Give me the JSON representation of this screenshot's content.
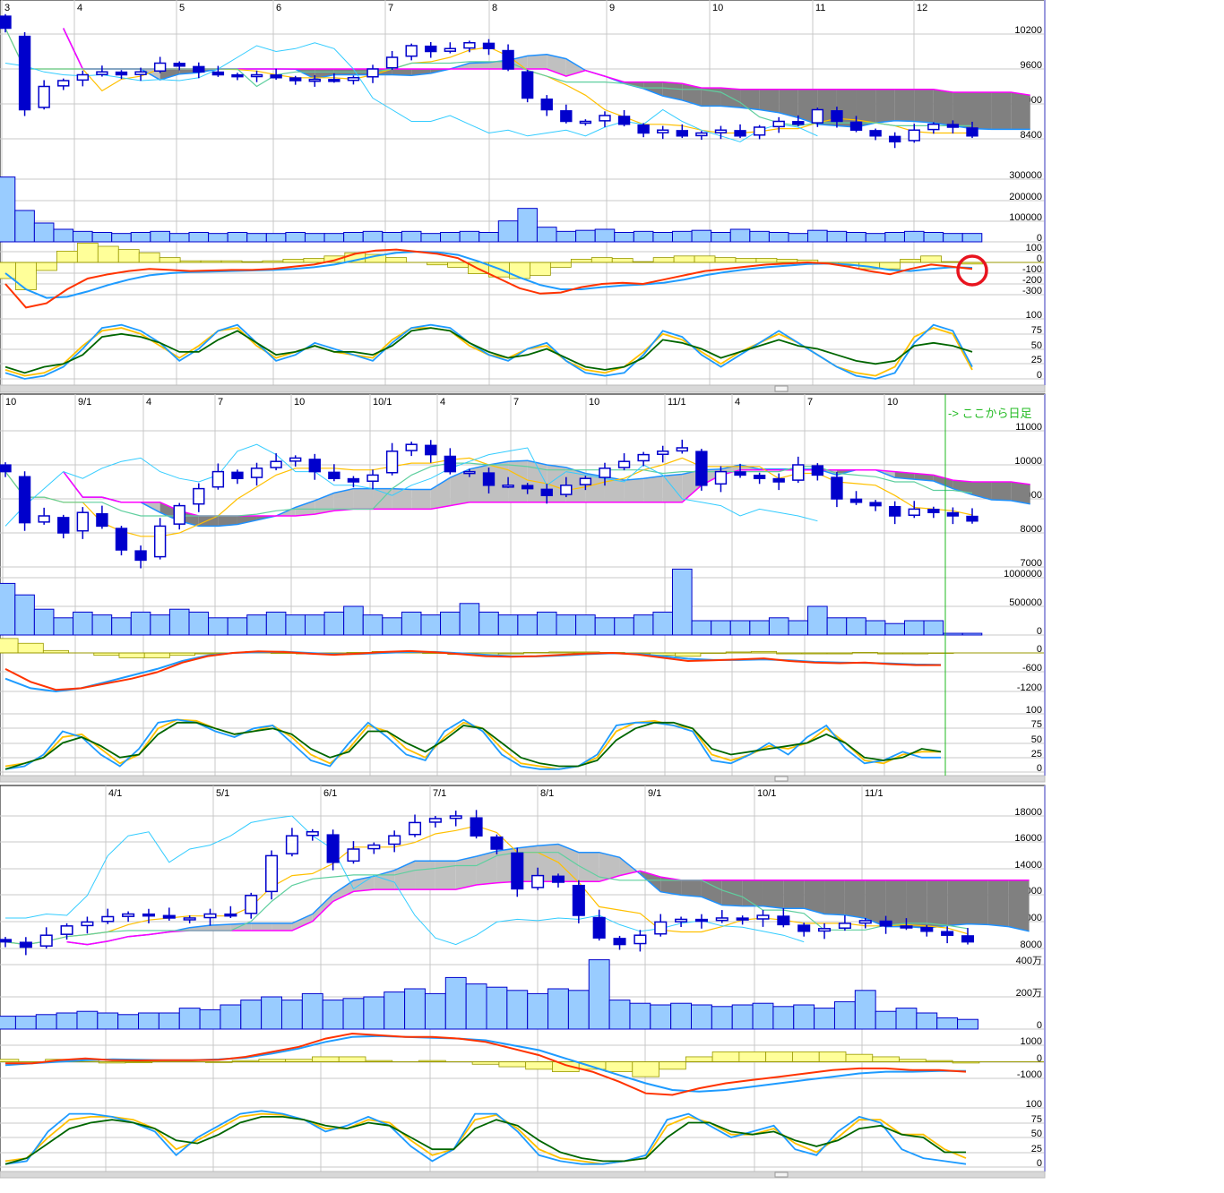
{
  "colors": {
    "up_candle": "#ffffff",
    "down_candle": "#0000cc",
    "volume": "#99ccff",
    "tenkan": "#ffc000",
    "kijun": "#5fcf9f",
    "chikou": "#33ccff",
    "span_a": "#1e90ff",
    "span_b": "#ff00ff",
    "macd": "#ff3300",
    "signal": "#1e9bff",
    "histogram": "#ffff99",
    "stoch_k": "#1e9bff",
    "stoch_d": "#ffc000",
    "slow_d": "#006600",
    "highlight_circle": "#e8141e",
    "daily_marker": "#22bb22"
  },
  "chart_data": [
    {
      "type": "candlestick",
      "panel": "top",
      "date_labels": [
        "3",
        "4",
        "5",
        "6",
        "7",
        "8",
        "9",
        "10",
        "11",
        "12"
      ],
      "price_ticks": [
        "10200",
        "9600",
        "9000",
        "8400"
      ],
      "volume_ticks": [
        "300000",
        "200000",
        "100000",
        "0"
      ],
      "macd_ticks": [
        "100",
        "0",
        "-100",
        "-200",
        "-300"
      ],
      "stoch_ticks": [
        "100",
        "75",
        "50",
        "25",
        "0"
      ],
      "annotation": "red-circle-around-macd-crossover",
      "close": [
        10300,
        8900,
        9300,
        9400,
        9500,
        9550,
        9500,
        9550,
        9700,
        9650,
        9550,
        9500,
        9480,
        9500,
        9450,
        9400,
        9420,
        9400,
        9450,
        9600,
        9800,
        10000,
        9900,
        9950,
        10050,
        9950,
        9600,
        9100,
        8900,
        8700,
        8700,
        8800,
        8650,
        8500,
        8550,
        8450,
        8500,
        8550,
        8450,
        8600,
        8700,
        8650,
        8900,
        8700,
        8550,
        8450,
        8350,
        8550,
        8650,
        8600,
        8450
      ],
      "volume": [
        310000,
        150000,
        90000,
        60000,
        50000,
        45000,
        40000,
        45000,
        50000,
        40000,
        45000,
        40000,
        45000,
        40000,
        40000,
        45000,
        40000,
        40000,
        45000,
        50000,
        45000,
        50000,
        40000,
        45000,
        50000,
        45000,
        100000,
        160000,
        70000,
        50000,
        55000,
        60000,
        45000,
        50000,
        45000,
        50000,
        55000,
        45000,
        60000,
        50000,
        45000,
        40000,
        55000,
        50000,
        45000,
        40000,
        45000,
        50000,
        45000,
        40000,
        40000
      ],
      "macd": [
        -200,
        -420,
        -380,
        -250,
        -150,
        -110,
        -80,
        -60,
        -70,
        -80,
        -75,
        -70,
        -70,
        -60,
        -40,
        -20,
        20,
        80,
        110,
        120,
        100,
        80,
        40,
        -60,
        -150,
        -240,
        -290,
        -280,
        -230,
        -200,
        -190,
        -200,
        -160,
        -120,
        -80,
        -60,
        -40,
        -20,
        -10,
        0,
        -10,
        -40,
        -80,
        -110,
        -60,
        -20,
        -40,
        -60
      ],
      "signal": [
        -100,
        -250,
        -330,
        -320,
        -270,
        -210,
        -160,
        -120,
        -100,
        -90,
        -85,
        -80,
        -75,
        -70,
        -60,
        -45,
        -20,
        20,
        60,
        90,
        100,
        95,
        70,
        10,
        -60,
        -140,
        -210,
        -250,
        -250,
        -230,
        -215,
        -205,
        -190,
        -160,
        -120,
        -90,
        -65,
        -45,
        -30,
        -15,
        -10,
        -20,
        -40,
        -70,
        -80,
        -60,
        -45,
        -50
      ],
      "stoch_k": [
        10,
        0,
        5,
        20,
        50,
        85,
        90,
        80,
        60,
        30,
        50,
        80,
        90,
        60,
        30,
        40,
        60,
        50,
        40,
        30,
        60,
        85,
        90,
        85,
        60,
        40,
        30,
        50,
        60,
        30,
        10,
        5,
        10,
        40,
        80,
        70,
        40,
        20,
        40,
        60,
        80,
        60,
        40,
        20,
        5,
        0,
        10,
        60,
        90,
        80,
        20
      ],
      "stoch_d": [
        15,
        5,
        10,
        25,
        55,
        80,
        85,
        75,
        55,
        35,
        55,
        80,
        85,
        55,
        35,
        45,
        55,
        45,
        40,
        35,
        65,
        85,
        85,
        80,
        55,
        40,
        35,
        50,
        55,
        30,
        15,
        10,
        20,
        45,
        75,
        65,
        45,
        25,
        45,
        60,
        75,
        60,
        40,
        20,
        10,
        5,
        20,
        70,
        85,
        75,
        15
      ],
      "slow_d": [
        20,
        10,
        20,
        25,
        40,
        70,
        75,
        70,
        60,
        45,
        45,
        65,
        80,
        60,
        40,
        45,
        55,
        45,
        45,
        40,
        55,
        80,
        85,
        80,
        60,
        45,
        35,
        40,
        50,
        35,
        20,
        15,
        20,
        35,
        65,
        60,
        50,
        35,
        45,
        55,
        65,
        55,
        50,
        40,
        30,
        25,
        30,
        55,
        60,
        55,
        45
      ]
    },
    {
      "type": "candlestick",
      "panel": "middle",
      "date_labels": [
        "10",
        "9/1",
        "4",
        "7",
        "10",
        "10/1",
        "4",
        "7",
        "10",
        "11/1",
        "4",
        "7",
        "10"
      ],
      "price_ticks": [
        "11000",
        "10000",
        "9000",
        "8000",
        "7000"
      ],
      "volume_ticks": [
        "1000000",
        "500000",
        "0"
      ],
      "macd_ticks": [
        "0",
        "-600",
        "-1200"
      ],
      "stoch_ticks": [
        "100",
        "75",
        "50",
        "25",
        "0"
      ],
      "annotation": "-> ここから日足",
      "close": [
        9800,
        8300,
        8500,
        8000,
        8600,
        8200,
        7500,
        7200,
        8200,
        8800,
        9300,
        9800,
        9600,
        9900,
        10100,
        10200,
        9800,
        9600,
        9500,
        9700,
        10400,
        10600,
        10300,
        9800,
        9800,
        9400,
        9400,
        9300,
        9100,
        9400,
        9600,
        9900,
        10100,
        10300,
        10400,
        10500,
        9400,
        9800,
        9700,
        9600,
        9500,
        10000,
        9700,
        9000,
        8900,
        8800,
        8500,
        8700,
        8600,
        8500,
        8350
      ],
      "volume": [
        900000,
        700000,
        450000,
        300000,
        400000,
        350000,
        300000,
        400000,
        350000,
        450000,
        400000,
        300000,
        300000,
        350000,
        400000,
        350000,
        350000,
        400000,
        500000,
        350000,
        300000,
        400000,
        350000,
        400000,
        550000,
        400000,
        350000,
        350000,
        400000,
        350000,
        350000,
        300000,
        300000,
        350000,
        400000,
        1150000,
        250000,
        250000,
        250000,
        250000,
        300000,
        250000,
        500000,
        300000,
        300000,
        250000,
        200000,
        250000,
        250000,
        30000,
        30000
      ],
      "macd": [
        -500,
        -900,
        -1150,
        -1100,
        -950,
        -800,
        -600,
        -300,
        -100,
        0,
        50,
        30,
        -20,
        -60,
        -20,
        30,
        60,
        20,
        -40,
        -100,
        -120,
        -100,
        -60,
        -20,
        0,
        -50,
        -150,
        -250,
        -230,
        -200,
        -170,
        -250,
        -300,
        -320,
        -300,
        -350,
        -380,
        -380
      ],
      "signal": [
        -800,
        -1100,
        -1200,
        -1100,
        -900,
        -700,
        -500,
        -250,
        -80,
        0,
        20,
        40,
        0,
        -40,
        -30,
        0,
        30,
        30,
        -10,
        -60,
        -100,
        -110,
        -80,
        -40,
        -10,
        -30,
        -100,
        -180,
        -220,
        -220,
        -200,
        -230,
        -280,
        -300,
        -310,
        -330,
        -360,
        -370
      ],
      "stoch_k": [
        5,
        10,
        30,
        70,
        60,
        30,
        10,
        40,
        85,
        90,
        85,
        70,
        60,
        75,
        80,
        50,
        20,
        10,
        50,
        85,
        60,
        30,
        20,
        70,
        90,
        70,
        30,
        10,
        5,
        5,
        10,
        30,
        80,
        85,
        85,
        80,
        70,
        20,
        15,
        30,
        50,
        30,
        60,
        80,
        40,
        15,
        20,
        35,
        25,
        25
      ],
      "stoch_d": [
        10,
        15,
        25,
        60,
        65,
        40,
        15,
        30,
        75,
        90,
        88,
        75,
        65,
        70,
        80,
        60,
        30,
        15,
        40,
        80,
        70,
        40,
        25,
        60,
        85,
        75,
        40,
        15,
        10,
        5,
        10,
        25,
        70,
        85,
        88,
        80,
        75,
        30,
        20,
        30,
        45,
        40,
        50,
        75,
        50,
        20,
        15,
        30,
        35,
        35
      ],
      "slow_d": [
        5,
        15,
        25,
        50,
        60,
        45,
        25,
        30,
        65,
        85,
        85,
        75,
        65,
        70,
        75,
        65,
        40,
        25,
        35,
        70,
        70,
        50,
        35,
        55,
        80,
        75,
        50,
        25,
        15,
        10,
        10,
        20,
        55,
        75,
        85,
        85,
        75,
        40,
        30,
        35,
        40,
        45,
        50,
        65,
        50,
        25,
        20,
        25,
        40,
        35
      ]
    },
    {
      "type": "candlestick",
      "panel": "bottom",
      "date_labels": [
        "4/1",
        "5/1",
        "6/1",
        "7/1",
        "8/1",
        "9/1",
        "10/1",
        "11/1"
      ],
      "price_ticks": [
        "18000",
        "16000",
        "14000",
        "12000",
        "10000",
        "8000"
      ],
      "volume_ticks": [
        "400万",
        "200万",
        "0"
      ],
      "macd_ticks": [
        "1000",
        "0",
        "-1000"
      ],
      "stoch_ticks": [
        "100",
        "75",
        "50",
        "25",
        "0"
      ],
      "close": [
        8500,
        8100,
        9000,
        9700,
        10000,
        10400,
        10600,
        10500,
        10300,
        10300,
        10600,
        10500,
        12000,
        15000,
        16500,
        16800,
        14500,
        15500,
        15800,
        16500,
        17500,
        17800,
        18000,
        16500,
        15500,
        12500,
        13500,
        13000,
        10500,
        8800,
        8300,
        9000,
        10000,
        10200,
        10100,
        10300,
        10200,
        10500,
        9800,
        9300,
        9500,
        9900,
        10100,
        9700,
        9600,
        9300,
        9000,
        8500
      ],
      "volume": [
        80,
        80,
        90,
        100,
        110,
        100,
        90,
        100,
        100,
        130,
        120,
        150,
        180,
        200,
        180,
        220,
        180,
        190,
        200,
        230,
        250,
        220,
        320,
        280,
        260,
        240,
        220,
        250,
        240,
        430,
        180,
        160,
        150,
        160,
        150,
        140,
        150,
        160,
        140,
        150,
        130,
        170,
        240,
        110,
        130,
        100,
        70,
        60
      ],
      "macd": [
        -100,
        -100,
        100,
        200,
        100,
        80,
        100,
        100,
        120,
        300,
        600,
        900,
        1400,
        1700,
        1600,
        1500,
        1500,
        1400,
        1200,
        800,
        400,
        -200,
        -600,
        -1200,
        -1900,
        -2000,
        -1600,
        -1300,
        -1100,
        -900,
        -700,
        -500,
        -400,
        -400,
        -500,
        -500,
        -600
      ],
      "signal": [
        -200,
        -100,
        0,
        100,
        150,
        120,
        100,
        100,
        150,
        250,
        500,
        800,
        1200,
        1500,
        1550,
        1500,
        1450,
        1400,
        1300,
        1000,
        700,
        200,
        -300,
        -800,
        -1300,
        -1700,
        -1800,
        -1700,
        -1500,
        -1300,
        -1100,
        -900,
        -700,
        -600,
        -600,
        -550,
        -550
      ],
      "stoch_k": [
        5,
        10,
        60,
        90,
        90,
        85,
        75,
        60,
        20,
        50,
        70,
        90,
        95,
        90,
        80,
        60,
        70,
        85,
        70,
        35,
        10,
        30,
        90,
        90,
        60,
        20,
        10,
        5,
        5,
        10,
        20,
        80,
        90,
        70,
        50,
        60,
        70,
        30,
        20,
        60,
        85,
        75,
        30,
        15,
        10,
        5
      ],
      "stoch_d": [
        10,
        15,
        50,
        80,
        85,
        85,
        80,
        65,
        30,
        45,
        65,
        85,
        90,
        88,
        80,
        65,
        65,
        80,
        75,
        45,
        20,
        30,
        80,
        88,
        65,
        30,
        15,
        10,
        5,
        10,
        15,
        70,
        85,
        75,
        55,
        55,
        65,
        40,
        25,
        50,
        80,
        80,
        55,
        55,
        30,
        15
      ],
      "slow_d": [
        5,
        15,
        40,
        65,
        75,
        80,
        75,
        65,
        45,
        40,
        55,
        75,
        85,
        85,
        80,
        70,
        65,
        75,
        70,
        50,
        30,
        30,
        65,
        80,
        70,
        45,
        25,
        15,
        10,
        10,
        15,
        50,
        75,
        75,
        60,
        55,
        60,
        45,
        35,
        45,
        65,
        70,
        55,
        50,
        25,
        25
      ]
    }
  ]
}
